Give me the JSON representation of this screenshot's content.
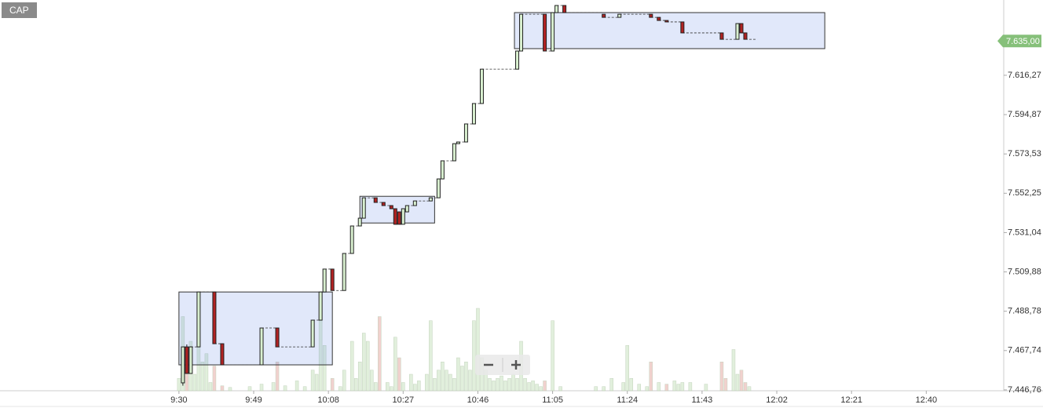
{
  "symbol_label": "CAP",
  "chart_data": {
    "type": "candlestick",
    "log_scale": true,
    "xlim": [
      524.5,
      779.7
    ],
    "ylim": [
      7446.3,
      7657.4
    ],
    "xticks": [
      {
        "value": 570,
        "label": "9:30"
      },
      {
        "value": 589,
        "label": "9:49"
      },
      {
        "value": 608,
        "label": "10:08"
      },
      {
        "value": 627,
        "label": "10:27"
      },
      {
        "value": 646,
        "label": "10:46"
      },
      {
        "value": 665,
        "label": "11:05"
      },
      {
        "value": 684,
        "label": "11:24"
      },
      {
        "value": 703,
        "label": "11:43"
      },
      {
        "value": 722,
        "label": "12:02"
      },
      {
        "value": 741,
        "label": "12:21"
      },
      {
        "value": 760,
        "label": "12:40"
      }
    ],
    "yticks": [
      {
        "value": 7446.76,
        "label": "7.446,76"
      },
      {
        "value": 7467.74,
        "label": "7.467,74"
      },
      {
        "value": 7488.78,
        "label": "7.488,78"
      },
      {
        "value": 7509.88,
        "label": "7.509,88"
      },
      {
        "value": 7531.04,
        "label": "7.531,04"
      },
      {
        "value": 7552.25,
        "label": "7.552,25"
      },
      {
        "value": 7573.53,
        "label": "7.573,53"
      },
      {
        "value": 7594.87,
        "label": "7.594,87"
      },
      {
        "value": 7616.27,
        "label": "7.616,27"
      }
    ],
    "up_color": "#d9f0d0",
    "down_color": "#b22222",
    "candles": {
      "x": [
        571,
        572,
        573,
        575,
        579,
        581,
        591,
        595,
        604,
        606,
        607,
        609,
        612,
        614,
        616,
        617,
        620,
        622,
        624,
        625,
        626,
        627,
        628,
        630,
        634,
        636,
        637,
        640,
        641,
        643,
        645,
        647,
        656,
        657,
        663,
        665,
        666,
        668,
        678,
        682,
        690,
        692,
        694,
        698,
        708,
        712,
        713,
        714
      ],
      "open": [
        7450.5,
        7469.7,
        7455.5,
        7469.7,
        7499.1,
        7471.4,
        7460.1,
        7479.8,
        7469.7,
        7484.0,
        7499.1,
        7511.4,
        7499.9,
        7519.8,
        7534.6,
        7538.8,
        7549.8,
        7547.3,
        7545.6,
        7543.9,
        7542.2,
        7535.5,
        7542.2,
        7545.6,
        7548.1,
        7549.8,
        7560.0,
        7569.8,
        7579.1,
        7580.0,
        7589.8,
        7600.9,
        7619.6,
        7629.5,
        7649.6,
        7629.5,
        7650.5,
        7654.4,
        7649.6,
        7647.9,
        7649.6,
        7647.9,
        7646.2,
        7645.4,
        7639.4,
        7635.9,
        7644.5,
        7639.4
      ],
      "high": [
        7469.7,
        7471.0,
        7470.0,
        7499.1,
        7499.1,
        7471.4,
        7479.8,
        7479.8,
        7484.0,
        7499.1,
        7511.4,
        7511.4,
        7519.8,
        7534.6,
        7538.8,
        7549.8,
        7549.8,
        7547.3,
        7545.6,
        7543.9,
        7542.2,
        7543.9,
        7545.6,
        7548.1,
        7549.8,
        7560.0,
        7569.8,
        7579.1,
        7580.0,
        7589.8,
        7600.9,
        7619.6,
        7629.5,
        7649.6,
        7649.6,
        7650.5,
        7654.4,
        7654.4,
        7649.6,
        7649.6,
        7649.6,
        7647.9,
        7646.2,
        7645.4,
        7639.4,
        7644.5,
        7644.5,
        7639.4
      ],
      "low": [
        7449.0,
        7455.5,
        7455.5,
        7469.7,
        7471.4,
        7460.1,
        7460.1,
        7469.7,
        7469.7,
        7484.0,
        7499.1,
        7499.9,
        7499.9,
        7519.8,
        7534.6,
        7538.8,
        7547.3,
        7545.6,
        7543.9,
        7535.5,
        7535.5,
        7535.5,
        7542.2,
        7545.6,
        7548.1,
        7549.8,
        7560.0,
        7569.8,
        7579.1,
        7580.0,
        7589.8,
        7600.9,
        7619.6,
        7629.5,
        7629.5,
        7629.5,
        7650.5,
        7650.5,
        7647.9,
        7647.9,
        7647.9,
        7646.2,
        7645.4,
        7639.4,
        7635.9,
        7635.9,
        7639.4,
        7635.9
      ],
      "close": [
        7469.7,
        7455.5,
        7469.7,
        7499.1,
        7471.4,
        7460.1,
        7479.8,
        7469.7,
        7484.0,
        7499.1,
        7511.4,
        7499.9,
        7519.8,
        7534.6,
        7538.8,
        7549.8,
        7547.3,
        7545.6,
        7543.9,
        7535.5,
        7535.5,
        7543.9,
        7545.6,
        7548.1,
        7549.8,
        7560.0,
        7569.8,
        7579.1,
        7580.0,
        7589.8,
        7600.9,
        7619.6,
        7629.5,
        7649.6,
        7629.5,
        7650.5,
        7654.4,
        7650.5,
        7647.9,
        7649.6,
        7647.9,
        7646.2,
        7645.4,
        7639.4,
        7635.9,
        7644.5,
        7639.4,
        7635.9
      ]
    },
    "volume": {
      "x": [
        570,
        571,
        572,
        573,
        574,
        575,
        576,
        577,
        578,
        579,
        581,
        583,
        588,
        591,
        594,
        595,
        597,
        600,
        602,
        604,
        605,
        606,
        607,
        609,
        611,
        612,
        614,
        615,
        616,
        617,
        618,
        619,
        620,
        621,
        623,
        624,
        625,
        626,
        627,
        629,
        630,
        631,
        633,
        634,
        635,
        636,
        637,
        638,
        639,
        640,
        641,
        642,
        643,
        644,
        645,
        646,
        647,
        648,
        649,
        650,
        651,
        652,
        653,
        654,
        655,
        656,
        657,
        658,
        659,
        660,
        661,
        662,
        663,
        665,
        667,
        676,
        678,
        680,
        683,
        684,
        685,
        687,
        689,
        690,
        692,
        694,
        696,
        697,
        698,
        700,
        704,
        708,
        709,
        711,
        712,
        713,
        714,
        715
      ],
      "values": [
        15,
        90,
        30,
        60,
        20,
        70,
        35,
        45,
        10,
        30,
        6,
        4,
        5,
        8,
        10,
        35,
        6,
        12,
        5,
        25,
        20,
        90,
        55,
        15,
        5,
        25,
        60,
        15,
        35,
        70,
        60,
        25,
        10,
        90,
        10,
        5,
        65,
        40,
        10,
        20,
        8,
        12,
        20,
        85,
        15,
        25,
        35,
        25,
        20,
        15,
        40,
        30,
        35,
        25,
        85,
        100,
        40,
        25,
        15,
        12,
        15,
        18,
        12,
        15,
        20,
        15,
        60,
        15,
        10,
        12,
        8,
        5,
        12,
        85,
        5,
        5,
        5,
        15,
        10,
        55,
        15,
        8,
        5,
        35,
        10,
        8,
        12,
        8,
        10,
        10,
        8,
        35,
        15,
        50,
        20,
        25,
        10,
        5
      ],
      "directions": [
        "up",
        "up",
        "down",
        "up",
        "up",
        "up",
        "up",
        "up",
        "up",
        "down",
        "down",
        "up",
        "up",
        "up",
        "up",
        "down",
        "up",
        "up",
        "up",
        "up",
        "up",
        "up",
        "up",
        "down",
        "up",
        "up",
        "up",
        "up",
        "up",
        "up",
        "up",
        "up",
        "up",
        "down",
        "up",
        "up",
        "up",
        "down",
        "up",
        "up",
        "up",
        "up",
        "up",
        "up",
        "up",
        "up",
        "up",
        "up",
        "up",
        "up",
        "up",
        "up",
        "up",
        "up",
        "up",
        "up",
        "up",
        "up",
        "up",
        "up",
        "up",
        "up",
        "up",
        "up",
        "up",
        "up",
        "up",
        "up",
        "up",
        "up",
        "up",
        "up",
        "down",
        "up",
        "up",
        "up",
        "up",
        "up",
        "up",
        "up",
        "up",
        "up",
        "up",
        "down",
        "up",
        "down",
        "up",
        "up",
        "up",
        "up",
        "up",
        "down",
        "down",
        "up",
        "up",
        "down",
        "down",
        "up"
      ]
    },
    "volume_ylim": [
      0,
      100
    ],
    "volume_up_color": "#dcedd6",
    "volume_down_color": "#efc9c6",
    "ranges": [
      {
        "x": [
          570,
          609
        ],
        "y": [
          7460.1,
          7499.1
        ]
      },
      {
        "x": [
          616,
          635
        ],
        "y": [
          7536.2,
          7550.6
        ]
      },
      {
        "x": [
          655.3,
          734.2
        ],
        "y": [
          7630.8,
          7650.5
        ]
      }
    ],
    "range_color": "#5a82e6",
    "last_price": {
      "value": 7635,
      "label": "7.635,00"
    },
    "last_price_color": "#86c07a"
  }
}
